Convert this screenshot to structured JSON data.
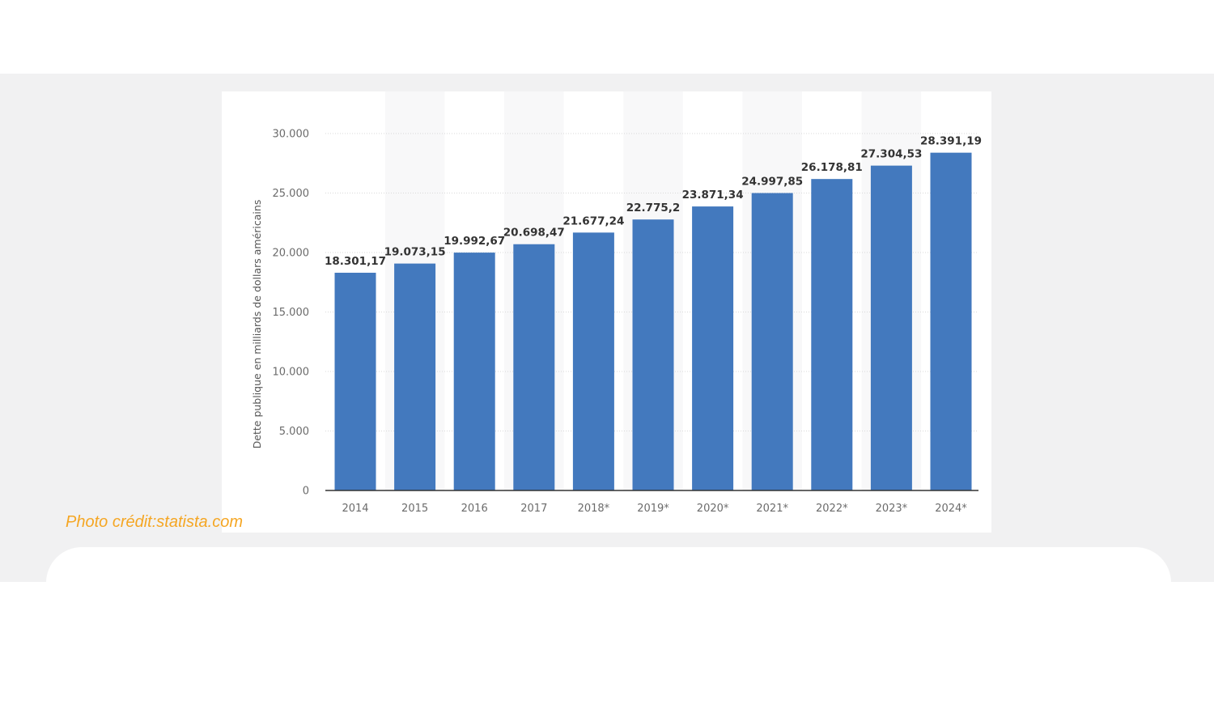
{
  "credit": "Photo crédit:statista.com",
  "colors": {
    "bar": "#4379be",
    "band": "#f1f1f2",
    "credit": "#f5a623"
  },
  "chart_data": {
    "type": "bar",
    "ylabel": "Dette publique en milliards de dollars américains",
    "xlabel": "",
    "ylim": [
      0,
      30000
    ],
    "yticks": [
      0,
      5000,
      10000,
      15000,
      20000,
      25000,
      30000
    ],
    "ytick_labels": [
      "0",
      "5.000",
      "10.000",
      "15.000",
      "20.000",
      "25.000",
      "30.000"
    ],
    "categories": [
      "2014",
      "2015",
      "2016",
      "2017",
      "2018*",
      "2019*",
      "2020*",
      "2021*",
      "2022*",
      "2023*",
      "2024*"
    ],
    "values": [
      18301.17,
      19073.15,
      19992.67,
      20698.47,
      21677.24,
      22775.2,
      23871.34,
      24997.85,
      26178.81,
      27304.53,
      28391.19
    ],
    "value_labels": [
      "18.301,17",
      "19.073,15",
      "19.992,67",
      "20.698,47",
      "21.677,24",
      "22.775,2",
      "23.871,34",
      "24.997,85",
      "26.178,81",
      "27.304,53",
      "28.391,19"
    ],
    "grid": true,
    "legend": "none"
  }
}
